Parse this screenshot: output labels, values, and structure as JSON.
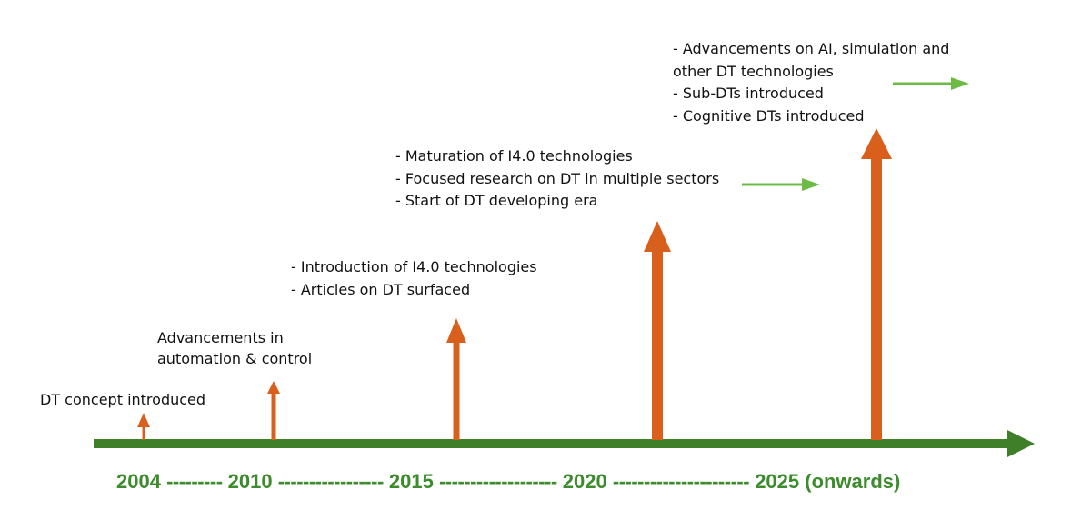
{
  "milestones": [
    {
      "year": "2004",
      "notes": [
        "DT concept introduced"
      ]
    },
    {
      "year": "2010",
      "notes": [
        "Advancements in",
        "automation & control"
      ]
    },
    {
      "year": "2015",
      "notes": [
        "- Introduction of I4.0 technologies",
        "- Articles on DT surfaced"
      ]
    },
    {
      "year": "2020",
      "notes": [
        "- Maturation of I4.0 technologies",
        "- Focused research on DT in multiple sectors",
        "- Start of DT developing era"
      ]
    },
    {
      "year": "2025",
      "notes": [
        "- Advancements on AI, simulation and",
        "other DT technologies",
        "- Sub-DTs introduced",
        "- Cognitive DTs introduced"
      ]
    }
  ],
  "axis": {
    "y2004": "2004",
    "sep1": "---------",
    "y2010": "2010",
    "sep2": "-----------------",
    "y2015": "2015",
    "sep3": "-------------------",
    "y2020": "2020",
    "sep4": "----------------------",
    "y2025": "2025 (onwards)"
  },
  "colors": {
    "timeline": "#3f7f2a",
    "arrow": "#d8601c",
    "trend_arrow": "#6dbb47",
    "axis_text": "#3c8b2c",
    "text": "#111111"
  }
}
